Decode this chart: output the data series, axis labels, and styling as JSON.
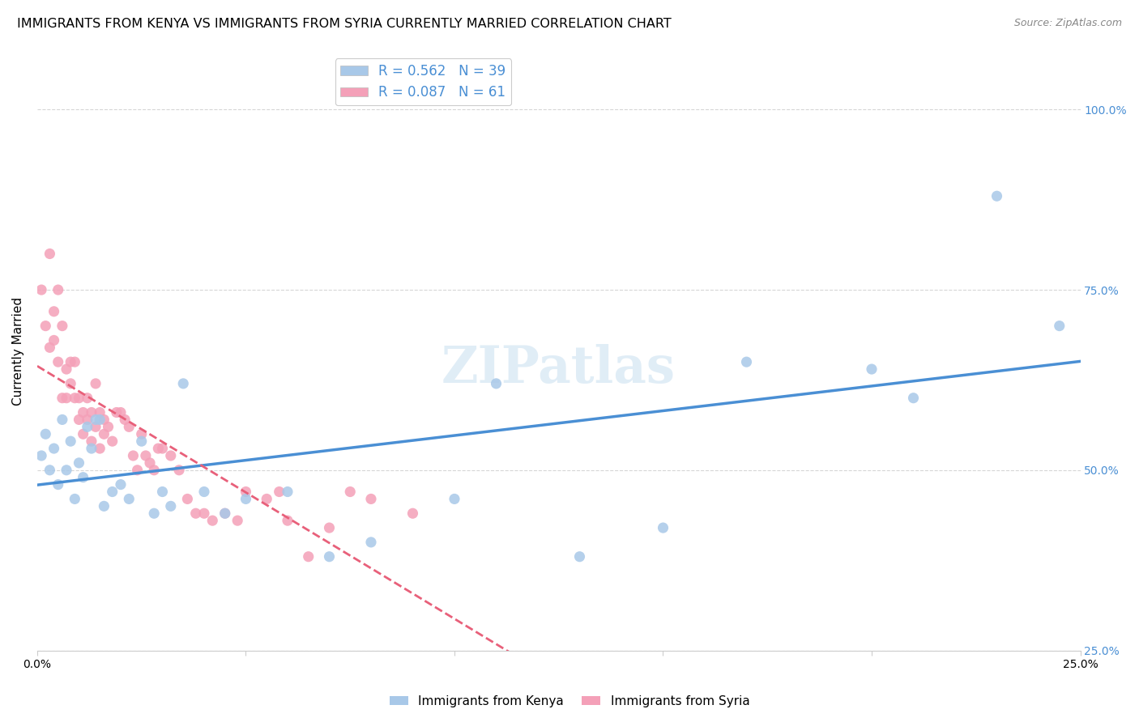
{
  "title": "IMMIGRANTS FROM KENYA VS IMMIGRANTS FROM SYRIA CURRENTLY MARRIED CORRELATION CHART",
  "source": "Source: ZipAtlas.com",
  "ylabel": "Currently Married",
  "xlim": [
    0.0,
    0.25
  ],
  "ylim": [
    0.35,
    1.08
  ],
  "kenya_color": "#a8c8e8",
  "syria_color": "#f4a0b8",
  "kenya_line_color": "#4a8fd4",
  "syria_line_color": "#e8607a",
  "kenya_R": 0.562,
  "kenya_N": 39,
  "syria_R": 0.087,
  "syria_N": 61,
  "watermark": "ZIPatlas",
  "kenya_x": [
    0.001,
    0.002,
    0.003,
    0.004,
    0.005,
    0.006,
    0.007,
    0.008,
    0.009,
    0.01,
    0.011,
    0.012,
    0.013,
    0.014,
    0.015,
    0.016,
    0.018,
    0.02,
    0.022,
    0.025,
    0.028,
    0.03,
    0.032,
    0.035,
    0.04,
    0.045,
    0.05,
    0.06,
    0.07,
    0.08,
    0.1,
    0.11,
    0.13,
    0.15,
    0.17,
    0.2,
    0.21,
    0.23,
    0.245
  ],
  "kenya_y": [
    0.52,
    0.55,
    0.5,
    0.53,
    0.48,
    0.57,
    0.5,
    0.54,
    0.46,
    0.51,
    0.49,
    0.56,
    0.53,
    0.57,
    0.57,
    0.45,
    0.47,
    0.48,
    0.46,
    0.54,
    0.44,
    0.47,
    0.45,
    0.62,
    0.47,
    0.44,
    0.46,
    0.47,
    0.38,
    0.4,
    0.46,
    0.62,
    0.38,
    0.42,
    0.65,
    0.64,
    0.6,
    0.88,
    0.7
  ],
  "syria_x": [
    0.001,
    0.002,
    0.003,
    0.003,
    0.004,
    0.004,
    0.005,
    0.005,
    0.006,
    0.006,
    0.007,
    0.007,
    0.008,
    0.008,
    0.009,
    0.009,
    0.01,
    0.01,
    0.011,
    0.011,
    0.012,
    0.012,
    0.013,
    0.013,
    0.014,
    0.014,
    0.015,
    0.015,
    0.016,
    0.016,
    0.017,
    0.018,
    0.019,
    0.02,
    0.021,
    0.022,
    0.023,
    0.024,
    0.025,
    0.026,
    0.027,
    0.028,
    0.029,
    0.03,
    0.032,
    0.034,
    0.036,
    0.038,
    0.04,
    0.042,
    0.045,
    0.048,
    0.05,
    0.055,
    0.058,
    0.06,
    0.065,
    0.07,
    0.075,
    0.08,
    0.09
  ],
  "syria_y": [
    0.75,
    0.7,
    0.8,
    0.67,
    0.68,
    0.72,
    0.65,
    0.75,
    0.6,
    0.7,
    0.64,
    0.6,
    0.65,
    0.62,
    0.65,
    0.6,
    0.6,
    0.57,
    0.58,
    0.55,
    0.57,
    0.6,
    0.58,
    0.54,
    0.56,
    0.62,
    0.58,
    0.53,
    0.55,
    0.57,
    0.56,
    0.54,
    0.58,
    0.58,
    0.57,
    0.56,
    0.52,
    0.5,
    0.55,
    0.52,
    0.51,
    0.5,
    0.53,
    0.53,
    0.52,
    0.5,
    0.46,
    0.44,
    0.44,
    0.43,
    0.44,
    0.43,
    0.47,
    0.46,
    0.47,
    0.43,
    0.38,
    0.42,
    0.47,
    0.46,
    0.44
  ],
  "background_color": "#ffffff",
  "grid_color": "#cccccc",
  "title_fontsize": 11.5,
  "axis_label_fontsize": 11,
  "tick_fontsize": 10,
  "right_tick_color": "#4a8fd4"
}
